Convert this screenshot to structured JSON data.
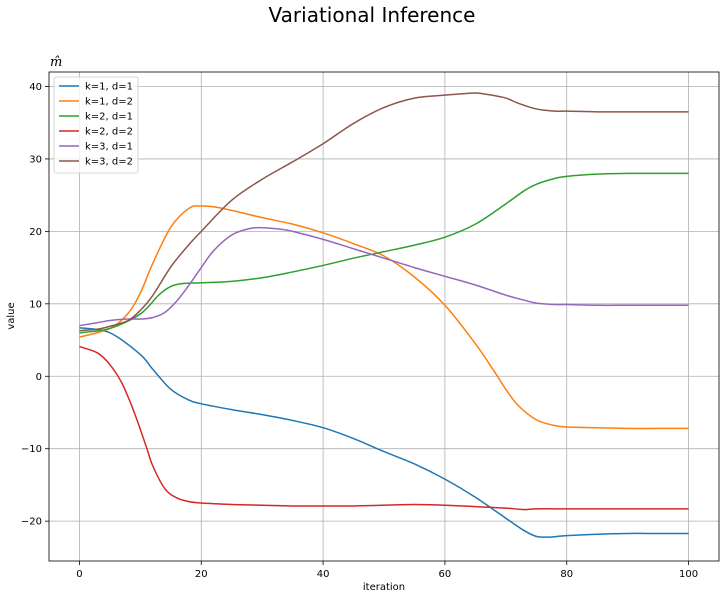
{
  "page_title": "Variational Inference",
  "chart_data": {
    "type": "line",
    "title": "m̂",
    "xlabel": "iteration",
    "ylabel": "value",
    "xlim": [
      -5,
      105
    ],
    "ylim": [
      -25.5,
      42
    ],
    "xticks": [
      0,
      20,
      40,
      60,
      80,
      100
    ],
    "yticks": [
      -20,
      -10,
      0,
      10,
      20,
      30,
      40
    ],
    "grid": true,
    "legend": "top-left",
    "series": [
      {
        "name": "k=1, d=1",
        "color": "#1f77b4",
        "x": [
          0,
          5,
          10,
          12,
          15,
          18,
          20,
          25,
          30,
          35,
          40,
          45,
          50,
          55,
          60,
          65,
          70,
          73,
          75,
          77,
          80,
          85,
          90,
          95,
          100
        ],
        "values": [
          6.7,
          6.0,
          3.0,
          1.0,
          -1.8,
          -3.3,
          -3.8,
          -4.6,
          -5.3,
          -6.1,
          -7.1,
          -8.6,
          -10.4,
          -12.1,
          -14.2,
          -16.7,
          -19.6,
          -21.3,
          -22.1,
          -22.2,
          -22.0,
          -21.8,
          -21.7,
          -21.7,
          -21.7
        ]
      },
      {
        "name": "k=1, d=2",
        "color": "#ff7f0e",
        "x": [
          0,
          5,
          8,
          10,
          12,
          15,
          18,
          20,
          22,
          25,
          30,
          35,
          40,
          45,
          50,
          55,
          60,
          65,
          68,
          70,
          72,
          75,
          78,
          80,
          85,
          90,
          95,
          100
        ],
        "values": [
          5.4,
          6.6,
          8.7,
          11.5,
          15.5,
          20.6,
          23.2,
          23.5,
          23.4,
          22.9,
          21.9,
          21.0,
          19.8,
          18.3,
          16.6,
          13.7,
          9.8,
          4.5,
          0.8,
          -1.8,
          -4.0,
          -6.0,
          -6.8,
          -7.0,
          -7.1,
          -7.2,
          -7.2,
          -7.2
        ]
      },
      {
        "name": "k=2, d=1",
        "color": "#2ca02c",
        "x": [
          0,
          5,
          10,
          13,
          15,
          17,
          20,
          25,
          30,
          35,
          40,
          45,
          50,
          55,
          60,
          65,
          70,
          73,
          75,
          78,
          80,
          85,
          90,
          95,
          100
        ],
        "values": [
          6.0,
          6.6,
          8.6,
          11.2,
          12.4,
          12.8,
          12.9,
          13.1,
          13.6,
          14.4,
          15.3,
          16.3,
          17.2,
          18.1,
          19.2,
          21.0,
          23.8,
          25.6,
          26.5,
          27.3,
          27.6,
          27.9,
          28.0,
          28.0,
          28.0
        ]
      },
      {
        "name": "k=2, d=2",
        "color": "#d62728",
        "x": [
          0,
          3,
          5,
          7,
          9,
          11,
          12,
          14,
          16,
          18,
          20,
          25,
          30,
          35,
          40,
          45,
          50,
          55,
          60,
          65,
          70,
          73,
          75,
          80,
          85,
          90,
          95,
          100
        ],
        "values": [
          4.1,
          3.2,
          1.6,
          -1.0,
          -5.0,
          -9.8,
          -12.3,
          -15.5,
          -16.8,
          -17.3,
          -17.5,
          -17.7,
          -17.8,
          -17.9,
          -17.9,
          -17.9,
          -17.8,
          -17.7,
          -17.8,
          -18.0,
          -18.2,
          -18.4,
          -18.3,
          -18.3,
          -18.3,
          -18.3,
          -18.3,
          -18.3
        ]
      },
      {
        "name": "k=3, d=1",
        "color": "#9467bd",
        "x": [
          0,
          3,
          5,
          8,
          10,
          12,
          14,
          16,
          18,
          20,
          22,
          25,
          28,
          30,
          33,
          35,
          40,
          45,
          50,
          55,
          60,
          65,
          70,
          73,
          75,
          78,
          80,
          85,
          90,
          95,
          100
        ],
        "values": [
          7.0,
          7.4,
          7.7,
          7.9,
          7.9,
          8.1,
          8.8,
          10.4,
          12.6,
          15.0,
          17.3,
          19.5,
          20.4,
          20.5,
          20.3,
          20.0,
          18.9,
          17.6,
          16.3,
          15.0,
          13.8,
          12.6,
          11.2,
          10.5,
          10.1,
          9.9,
          9.9,
          9.8,
          9.8,
          9.8,
          9.8
        ]
      },
      {
        "name": "k=3, d=2",
        "color": "#8c564b",
        "x": [
          0,
          3,
          5,
          8,
          10,
          12,
          15,
          18,
          20,
          25,
          30,
          35,
          40,
          45,
          50,
          55,
          60,
          63,
          65,
          67,
          70,
          72,
          75,
          78,
          80,
          85,
          90,
          95,
          100
        ],
        "values": [
          6.3,
          6.5,
          6.9,
          7.7,
          9.1,
          11.1,
          15.1,
          18.2,
          20.0,
          24.3,
          27.2,
          29.6,
          32.1,
          34.9,
          37.1,
          38.4,
          38.8,
          39.0,
          39.1,
          38.9,
          38.4,
          37.7,
          36.9,
          36.6,
          36.6,
          36.5,
          36.5,
          36.5,
          36.5
        ]
      }
    ]
  }
}
